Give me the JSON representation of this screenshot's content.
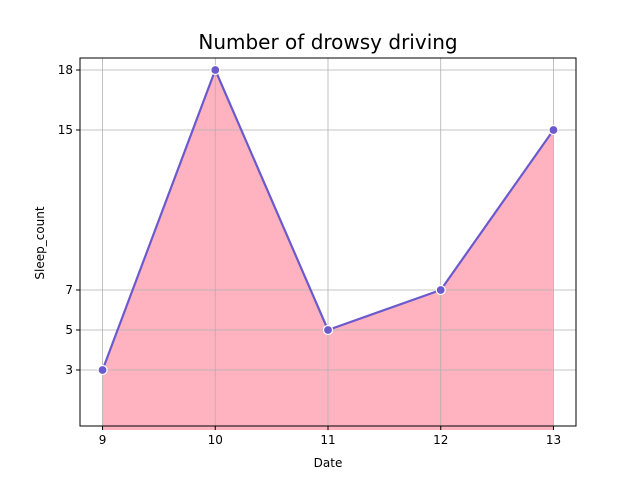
{
  "chart_data": {
    "type": "area",
    "title": "Number of drowsy driving",
    "xlabel": "Date",
    "ylabel": "Sleep_count",
    "x": [
      9,
      10,
      11,
      12,
      13
    ],
    "series": [
      {
        "values": [
          3,
          18,
          5,
          7,
          15
        ]
      }
    ],
    "xticks": [
      9,
      10,
      11,
      12,
      13
    ],
    "yticks": [
      3,
      5,
      7,
      15,
      18
    ],
    "xlim": [
      8.8,
      13.2
    ],
    "ylim": [
      0.2,
      18.6
    ],
    "area_baseline": 0,
    "grid": true,
    "colors": {
      "fill": "#FFB3C1",
      "line": "#6A5ACD",
      "marker_fill": "#6A5ACD",
      "marker_edge": "#ffffff",
      "grid": "#b0b0b0",
      "axes": "#000000"
    }
  }
}
